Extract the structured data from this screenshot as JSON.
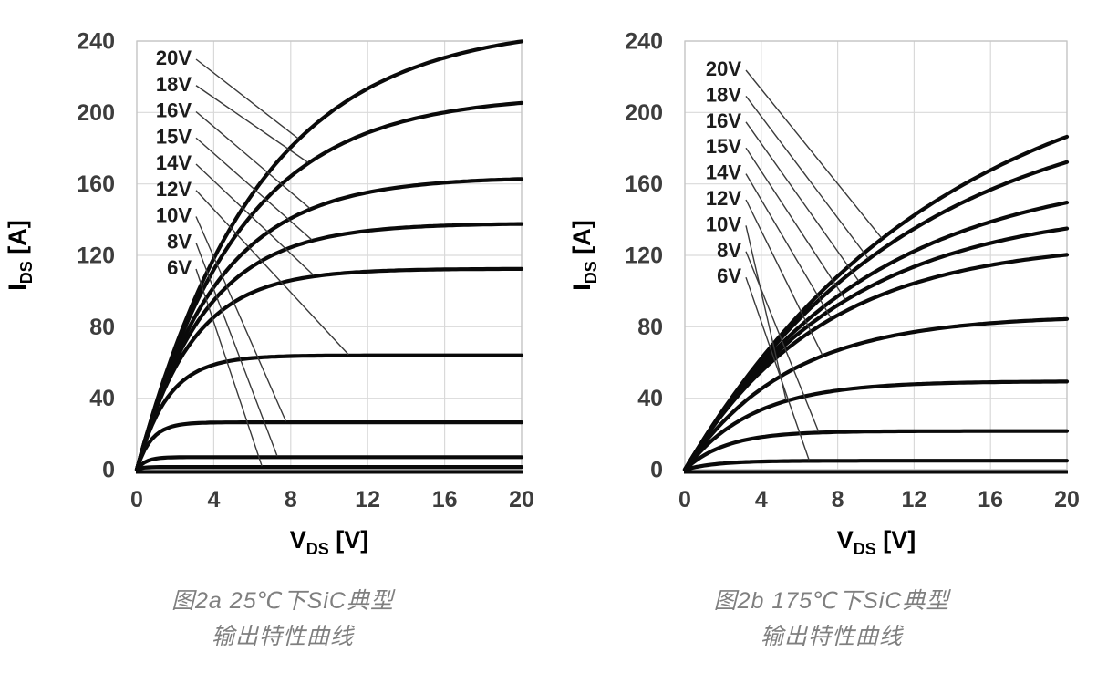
{
  "colors": {
    "background": "#ffffff",
    "curve": "#0a0a0a",
    "grid": "#d9d9d9",
    "plot_border": "#c3c3c3",
    "axis_line": "#0a0a0a",
    "tick_text": "#3d3d3d",
    "gate_label_text": "#1c1c1c",
    "leader_line": "#3a3a3a",
    "axis_title_text": "#000000",
    "caption_text": "#7f7f7f"
  },
  "chart_data": [
    {
      "type": "line",
      "id": "sic-output-25c",
      "caption_line1": "图2a 25℃下SiC典型",
      "caption_line2": "输出特性曲线",
      "xlabel": {
        "symbol": "V",
        "sub": "DS",
        "unit": "[V]"
      },
      "ylabel": {
        "symbol": "I",
        "sub": "DS",
        "unit": "[A]"
      },
      "x_axis": {
        "min": 0,
        "max": 20,
        "ticks": [
          0,
          4,
          8,
          12,
          16,
          20
        ]
      },
      "y_axis": {
        "min": 0,
        "max": 240,
        "ticks": [
          0,
          40,
          80,
          120,
          160,
          200,
          240
        ]
      },
      "grid": true,
      "legend_position": "label-column-with-leaders",
      "series": [
        {
          "name": "20V",
          "x": [
            0,
            4,
            8,
            12,
            16,
            20
          ],
          "y": [
            0,
            118,
            180,
            213,
            231,
            240
          ],
          "model": {
            "isat": 250,
            "g0": 40
          },
          "leader_end_vds": 8.4
        },
        {
          "name": "18V",
          "x": [
            0,
            4,
            8,
            12,
            16,
            20
          ],
          "y": [
            0,
            112,
            164,
            189,
            200,
            205
          ],
          "model": {
            "isat": 210,
            "g0": 40
          },
          "leader_end_vds": 8.9
        },
        {
          "name": "16V",
          "x": [
            0,
            4,
            8,
            12,
            16,
            20
          ],
          "y": [
            0,
            102,
            141,
            155,
            161,
            162
          ],
          "model": {
            "isat": 164,
            "g0": 40
          },
          "leader_end_vds": 9.0
        },
        {
          "name": "15V",
          "x": [
            0,
            4,
            8,
            12,
            16,
            20
          ],
          "y": [
            0,
            95,
            124,
            134,
            137,
            137
          ],
          "model": {
            "isat": 138,
            "g0": 40
          },
          "leader_end_vds": 9.1
        },
        {
          "name": "14V",
          "x": [
            0,
            4,
            8,
            12,
            16,
            20
          ],
          "y": [
            0,
            85,
            106,
            111,
            112,
            112
          ],
          "model": {
            "isat": 112.5,
            "g0": 40
          },
          "leader_end_vds": 9.2
        },
        {
          "name": "12V",
          "x": [
            0,
            4,
            8,
            12,
            16,
            20
          ],
          "y": [
            0,
            59,
            64,
            64,
            64,
            64
          ],
          "model": {
            "isat": 64,
            "g0": 40
          },
          "leader_end_vds": 11.0
        },
        {
          "name": "10V",
          "x": [
            0,
            4,
            8,
            12,
            16,
            20
          ],
          "y": [
            0,
            26,
            26.5,
            26.5,
            26.5,
            26.5
          ],
          "model": {
            "isat": 26.5,
            "g0": 35
          },
          "leader_end_vds": 7.75
        },
        {
          "name": "8V",
          "x": [
            0,
            4,
            8,
            12,
            16,
            20
          ],
          "y": [
            0,
            7,
            7,
            7,
            7,
            7
          ],
          "model": {
            "isat": 7,
            "g0": 15
          },
          "leader_end_vds": 7.3
        },
        {
          "name": "6V",
          "x": [
            0,
            4,
            8,
            12,
            16,
            20
          ],
          "y": [
            0,
            1.5,
            1.5,
            1.5,
            1.5,
            1.5
          ],
          "model": {
            "isat": 1.5,
            "g0": 5
          },
          "leader_end_vds": 6.5
        }
      ]
    },
    {
      "type": "line",
      "id": "sic-output-175c",
      "caption_line1": "图2b 175℃下SiC典型",
      "caption_line2": "输出特性曲线",
      "xlabel": {
        "symbol": "V",
        "sub": "DS",
        "unit": "[V]"
      },
      "ylabel": {
        "symbol": "I",
        "sub": "DS",
        "unit": "[A]"
      },
      "x_axis": {
        "min": 0,
        "max": 20,
        "ticks": [
          0,
          4,
          8,
          12,
          16,
          20
        ]
      },
      "y_axis": {
        "min": 0,
        "max": 240,
        "ticks": [
          0,
          40,
          80,
          120,
          160,
          200,
          240
        ]
      },
      "grid": true,
      "legend_position": "label-column-with-leaders",
      "series": [
        {
          "name": "20V",
          "x": [
            0,
            4,
            8,
            12,
            16,
            20
          ],
          "y": [
            0,
            62,
            108,
            142,
            168,
            186
          ],
          "model": {
            "isat": 240,
            "g0": 18
          },
          "leader_end_vds": 10.3
        },
        {
          "name": "18V",
          "x": [
            0,
            4,
            8,
            12,
            16,
            20
          ],
          "y": [
            0,
            61,
            104,
            135,
            157,
            172
          ],
          "model": {
            "isat": 210,
            "g0": 18
          },
          "leader_end_vds": 9.6
        },
        {
          "name": "16V",
          "x": [
            0,
            4,
            8,
            12,
            16,
            20
          ],
          "y": [
            0,
            59,
            97,
            122,
            139,
            150
          ],
          "model": {
            "isat": 170,
            "g0": 18
          },
          "leader_end_vds": 9.1
        },
        {
          "name": "15V",
          "x": [
            0,
            4,
            8,
            12,
            16,
            20
          ],
          "y": [
            0,
            57,
            92,
            114,
            127,
            135
          ],
          "model": {
            "isat": 148,
            "g0": 18
          },
          "leader_end_vds": 8.4
        },
        {
          "name": "14V",
          "x": [
            0,
            4,
            8,
            12,
            16,
            20
          ],
          "y": [
            0,
            55,
            86,
            104,
            115,
            120
          ],
          "model": {
            "isat": 128,
            "g0": 18
          },
          "leader_end_vds": 7.65
        },
        {
          "name": "12V",
          "x": [
            0,
            4,
            8,
            12,
            16,
            20
          ],
          "y": [
            0,
            45,
            67,
            77,
            82,
            84
          ],
          "model": {
            "isat": 86.5,
            "g0": 16
          },
          "leader_end_vds": 7.2
        },
        {
          "name": "10V",
          "x": [
            0,
            4,
            8,
            12,
            16,
            20
          ],
          "y": [
            0,
            34,
            44,
            48,
            49,
            49
          ],
          "model": {
            "isat": 49.5,
            "g0": 14
          },
          "leader_end_vds": 5.3
        },
        {
          "name": "8V",
          "x": [
            0,
            4,
            8,
            12,
            16,
            20
          ],
          "y": [
            0,
            18,
            21,
            21.5,
            21.5,
            21.6
          ],
          "model": {
            "isat": 21.6,
            "g0": 10
          },
          "leader_end_vds": 7.0
        },
        {
          "name": "6V",
          "x": [
            0,
            4,
            8,
            12,
            16,
            20
          ],
          "y": [
            0,
            4.5,
            5,
            5,
            5,
            5
          ],
          "model": {
            "isat": 5,
            "g0": 3
          },
          "leader_end_vds": 6.5
        }
      ]
    }
  ]
}
